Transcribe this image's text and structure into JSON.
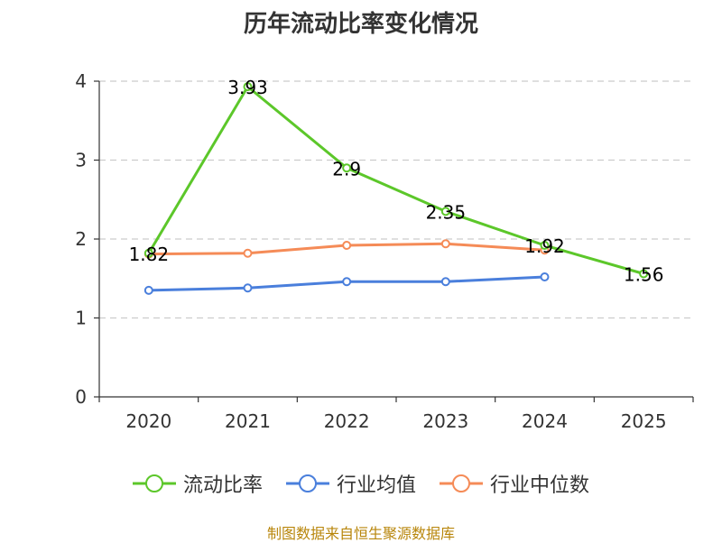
{
  "title": "历年流动比率变化情况",
  "footer": "制图数据来自恒生聚源数据库",
  "colors": {
    "footer": "#b8860b",
    "grid": "#cccccc",
    "axis": "#333333"
  },
  "chart_data": {
    "type": "line",
    "categories": [
      "2020",
      "2021",
      "2022",
      "2023",
      "2024",
      "2025"
    ],
    "ylim": [
      0,
      4
    ],
    "yticks": [
      "0",
      "1",
      "2",
      "3",
      "4"
    ],
    "grid": true,
    "legend_position": "bottom",
    "series": [
      {
        "name": "流动比率",
        "color": "#5cc72a",
        "values": [
          1.82,
          3.93,
          2.9,
          2.35,
          1.92,
          1.56
        ],
        "labels": [
          "1.82",
          "3.93",
          "2.9",
          "2.35",
          "1.92",
          "1.56"
        ]
      },
      {
        "name": "行业均值",
        "color": "#4a7fdc",
        "values": [
          1.35,
          1.38,
          1.46,
          1.46,
          1.52,
          null
        ]
      },
      {
        "name": "行业中位数",
        "color": "#f58b57",
        "values": [
          1.81,
          1.82,
          1.92,
          1.94,
          1.86,
          null
        ]
      }
    ]
  }
}
